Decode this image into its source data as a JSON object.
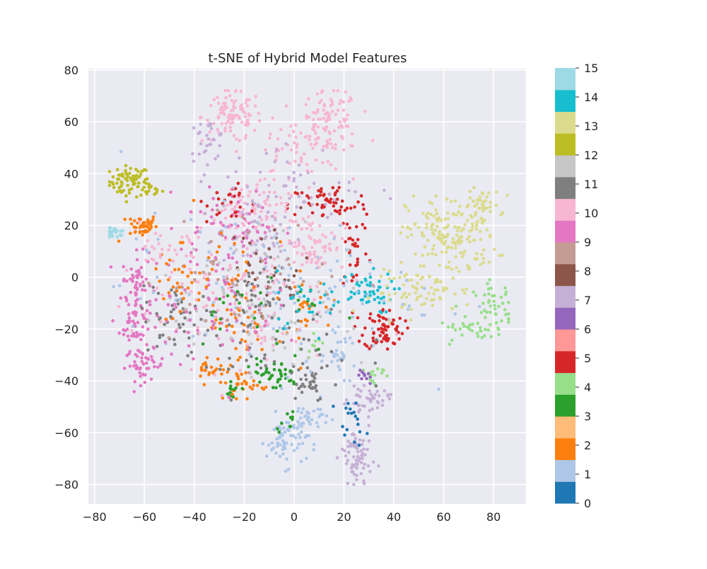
{
  "chart_data": {
    "type": "scatter",
    "title": "t-SNE of Hybrid Model Features",
    "xlabel": "",
    "ylabel": "",
    "xlim": [
      -82.5,
      93
    ],
    "ylim": [
      -87.5,
      80.5
    ],
    "x_ticks": [
      -80,
      -60,
      -40,
      -20,
      0,
      20,
      40,
      60,
      80
    ],
    "y_ticks": [
      -80,
      -60,
      -40,
      -20,
      0,
      20,
      40,
      60,
      80
    ],
    "x_tick_labels": [
      "−80",
      "−60",
      "−40",
      "−20",
      "0",
      "20",
      "40",
      "60",
      "80"
    ],
    "y_tick_labels": [
      "−80",
      "−60",
      "−40",
      "−20",
      "0",
      "20",
      "40",
      "60",
      "80"
    ],
    "grid": true,
    "background": "#eaeaf2",
    "colorbar": {
      "colormap": "tab20",
      "min": 0,
      "max": 15,
      "ticks": [
        "0",
        "1",
        "2",
        "3",
        "4",
        "5",
        "6",
        "7",
        "8",
        "9",
        "10",
        "11",
        "12",
        "13",
        "14",
        "15"
      ],
      "colors": [
        "#1f77b4",
        "#aec7e8",
        "#ff7f0e",
        "#ffbb78",
        "#2ca02c",
        "#98df8a",
        "#d62728",
        "#ff9896",
        "#9467bd",
        "#c5b0d5",
        "#8c564b",
        "#c49c94",
        "#e377c2",
        "#f7b6d2",
        "#7f7f7f",
        "#c7c7c7",
        "#bcbd22",
        "#dbdb8d",
        "#17becf",
        "#9edae5"
      ]
    },
    "clusters": [
      {
        "label": 12,
        "color": "#bcbd22",
        "center": [
          -66,
          37
        ],
        "spread": [
          4,
          3
        ],
        "n": 70
      },
      {
        "label": 12,
        "color": "#bcbd22",
        "center": [
          -58,
          34
        ],
        "spread": [
          2.5,
          1.5
        ],
        "n": 18
      },
      {
        "label": 15,
        "color": "#9edae5",
        "center": [
          -72,
          17
        ],
        "spread": [
          2.2,
          1
        ],
        "n": 20
      },
      {
        "label": 2,
        "color": "#ff7f0e",
        "center": [
          -61,
          20
        ],
        "spread": [
          3,
          2.2
        ],
        "n": 45
      },
      {
        "label": 9,
        "color": "#e377c2",
        "center": [
          -63,
          -3
        ],
        "spread": [
          3,
          6
        ],
        "n": 55
      },
      {
        "label": 9,
        "color": "#e377c2",
        "center": [
          -64,
          -18
        ],
        "spread": [
          3,
          5
        ],
        "n": 45
      },
      {
        "label": 9,
        "color": "#e377c2",
        "center": [
          -60,
          -34
        ],
        "spread": [
          4,
          3
        ],
        "n": 45
      },
      {
        "label": 10,
        "color": "#f7b6d2",
        "center": [
          -25,
          62
        ],
        "spread": [
          6,
          5
        ],
        "n": 100
      },
      {
        "label": 10,
        "color": "#f7b6d2",
        "center": [
          14,
          60
        ],
        "spread": [
          6,
          6
        ],
        "n": 100
      },
      {
        "label": 7,
        "color": "#c5b0d5",
        "center": [
          -35,
          53
        ],
        "spread": [
          4,
          4
        ],
        "n": 30
      },
      {
        "label": 10,
        "color": "#f7b6d2",
        "center": [
          0,
          48
        ],
        "spread": [
          10,
          6
        ],
        "n": 50
      },
      {
        "label": 5,
        "color": "#d62728",
        "center": [
          14,
          28
        ],
        "spread": [
          8,
          4
        ],
        "n": 60
      },
      {
        "label": 5,
        "color": "#d62728",
        "center": [
          24,
          12
        ],
        "spread": [
          3,
          9
        ],
        "n": 30
      },
      {
        "label": 5,
        "color": "#d62728",
        "center": [
          36,
          -20
        ],
        "spread": [
          4,
          4
        ],
        "n": 70
      },
      {
        "label": 14,
        "color": "#17becf",
        "center": [
          28,
          -6
        ],
        "spread": [
          6,
          4
        ],
        "n": 50
      },
      {
        "label": 13,
        "color": "#dbdb8d",
        "center": [
          63,
          16
        ],
        "spread": [
          9,
          8
        ],
        "n": 180
      },
      {
        "label": 13,
        "color": "#dbdb8d",
        "center": [
          75,
          28
        ],
        "spread": [
          4,
          3
        ],
        "n": 35
      },
      {
        "label": 13,
        "color": "#dbdb8d",
        "center": [
          52,
          -6
        ],
        "spread": [
          10,
          4
        ],
        "n": 70
      },
      {
        "label": 4,
        "color": "#98df8a",
        "center": [
          80,
          -12
        ],
        "spread": [
          4,
          5
        ],
        "n": 50
      },
      {
        "label": 4,
        "color": "#98df8a",
        "center": [
          70,
          -20
        ],
        "spread": [
          6,
          2
        ],
        "n": 25
      },
      {
        "label": 1,
        "color": "#aec7e8",
        "center": [
          -3,
          -63
        ],
        "spread": [
          4,
          5
        ],
        "n": 70
      },
      {
        "label": 1,
        "color": "#aec7e8",
        "center": [
          6,
          -54
        ],
        "spread": [
          4,
          3
        ],
        "n": 30
      },
      {
        "label": 1,
        "color": "#aec7e8",
        "center": [
          19,
          -30
        ],
        "spread": [
          3,
          4
        ],
        "n": 30
      },
      {
        "label": 7,
        "color": "#c5b0d5",
        "center": [
          25,
          -70
        ],
        "spread": [
          3,
          7
        ],
        "n": 75
      },
      {
        "label": 7,
        "color": "#c5b0d5",
        "center": [
          30,
          -47
        ],
        "spread": [
          4,
          2
        ],
        "n": 40
      },
      {
        "label": 10,
        "color": "#f7b6d2",
        "center": [
          8,
          13
        ],
        "spread": [
          6,
          5
        ],
        "n": 70
      },
      {
        "label": 10,
        "color": "#f7b6d2",
        "center": [
          -20,
          25
        ],
        "spread": [
          9,
          6
        ],
        "n": 90
      },
      {
        "label": 7,
        "color": "#c5b0d5",
        "center": [
          -15,
          15
        ],
        "spread": [
          8,
          6
        ],
        "n": 50
      },
      {
        "label": 9,
        "color": "#e377c2",
        "center": [
          -25,
          20
        ],
        "spread": [
          10,
          7
        ],
        "n": 60
      },
      {
        "label": 11,
        "color": "#7f7f7f",
        "center": [
          -12,
          -5
        ],
        "spread": [
          6,
          6
        ],
        "n": 40
      },
      {
        "label": 11,
        "color": "#7f7f7f",
        "center": [
          5,
          -40
        ],
        "spread": [
          4,
          4
        ],
        "n": 30
      },
      {
        "label": 11,
        "color": "#7f7f7f",
        "center": [
          -45,
          -15
        ],
        "spread": [
          8,
          6
        ],
        "n": 40
      },
      {
        "label": 2,
        "color": "#ff7f0e",
        "center": [
          -20,
          -20
        ],
        "spread": [
          8,
          7
        ],
        "n": 40
      },
      {
        "label": 2,
        "color": "#ff7f0e",
        "center": [
          -20,
          -42
        ],
        "spread": [
          5,
          3
        ],
        "n": 30
      },
      {
        "label": 2,
        "color": "#ff7f0e",
        "center": [
          -32,
          -35
        ],
        "spread": [
          4,
          3
        ],
        "n": 25
      },
      {
        "label": 2,
        "color": "#ff7f0e",
        "center": [
          5,
          -10
        ],
        "spread": [
          5,
          5
        ],
        "n": 25
      },
      {
        "label": 3,
        "color": "#2ca02c",
        "center": [
          -8,
          -38
        ],
        "spread": [
          5,
          3
        ],
        "n": 40
      },
      {
        "label": 3,
        "color": "#2ca02c",
        "center": [
          -25,
          -43
        ],
        "spread": [
          2,
          2
        ],
        "n": 12
      },
      {
        "label": 3,
        "color": "#2ca02c",
        "center": [
          -3,
          -55
        ],
        "spread": [
          2,
          2
        ],
        "n": 10
      },
      {
        "label": 4,
        "color": "#98df8a",
        "center": [
          32,
          -38
        ],
        "spread": [
          2,
          3
        ],
        "n": 15
      },
      {
        "label": 4,
        "color": "#98df8a",
        "center": [
          8,
          -25
        ],
        "spread": [
          2,
          2
        ],
        "n": 10
      },
      {
        "label": 0,
        "color": "#1f77b4",
        "center": [
          23,
          -56
        ],
        "spread": [
          3,
          4
        ],
        "n": 18
      },
      {
        "label": 8,
        "color": "#8c564b",
        "center": [
          -10,
          5
        ],
        "spread": [
          8,
          8
        ],
        "n": 30
      },
      {
        "label": 6,
        "color": "#9467bd",
        "center": [
          28,
          -38
        ],
        "spread": [
          2,
          2
        ],
        "n": 10
      },
      {
        "label": 5,
        "color": "#d62728",
        "center": [
          -25,
          28
        ],
        "spread": [
          5,
          4
        ],
        "n": 25
      },
      {
        "label": 1,
        "color": "#aec7e8",
        "center": [
          -10,
          -5
        ],
        "spread": [
          30,
          15
        ],
        "n": 120
      },
      {
        "label": 10,
        "color": "#f7b6d2",
        "center": [
          -25,
          -10
        ],
        "spread": [
          20,
          12
        ],
        "n": 110
      },
      {
        "label": 11,
        "color": "#7f7f7f",
        "center": [
          -15,
          -25
        ],
        "spread": [
          20,
          10
        ],
        "n": 70
      },
      {
        "label": 15,
        "color": "#c7c7c7",
        "center": [
          -10,
          -10
        ],
        "spread": [
          22,
          14
        ],
        "n": 70
      },
      {
        "label": 8,
        "color": "#c49c94",
        "center": [
          -20,
          0
        ],
        "spread": [
          20,
          12
        ],
        "n": 50
      },
      {
        "label": 9,
        "color": "#e377c2",
        "center": [
          -35,
          -10
        ],
        "spread": [
          14,
          12
        ],
        "n": 70
      },
      {
        "label": 2,
        "color": "#ff7f0e",
        "center": [
          -35,
          5
        ],
        "spread": [
          12,
          10
        ],
        "n": 30
      },
      {
        "label": 3,
        "color": "#2ca02c",
        "center": [
          -15,
          -15
        ],
        "spread": [
          15,
          10
        ],
        "n": 30
      },
      {
        "label": 7,
        "color": "#c5b0d5",
        "center": [
          0,
          35
        ],
        "spread": [
          15,
          8
        ],
        "n": 50
      },
      {
        "label": 14,
        "color": "#17becf",
        "center": [
          5,
          -8
        ],
        "spread": [
          8,
          5
        ],
        "n": 25
      },
      {
        "label": 2,
        "color": "#ff7f0e",
        "center": [
          -48,
          -2
        ],
        "spread": [
          4,
          8
        ],
        "n": 20
      },
      {
        "label": 10,
        "color": "#f7b6d2",
        "center": [
          -50,
          8
        ],
        "spread": [
          6,
          6
        ],
        "n": 30
      }
    ]
  }
}
